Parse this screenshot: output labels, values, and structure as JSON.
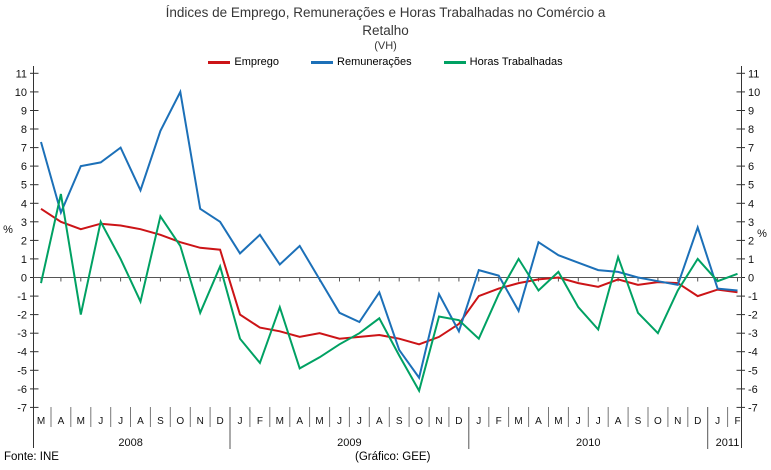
{
  "title": {
    "line1": "Índices de Emprego, Remunerações e Horas Trabalhadas no Comércio a",
    "line2": "Retalho",
    "subtitle": "(VH)"
  },
  "legend": [
    {
      "label": "Emprego",
      "color": "#cc1417"
    },
    {
      "label": "Remunerações",
      "color": "#1c70b8"
    },
    {
      "label": "Horas Trabalhadas",
      "color": "#00a163"
    }
  ],
  "footer": {
    "left": "Fonte: INE",
    "right": "(Gráfico: GEE)"
  },
  "chart_data": {
    "type": "line",
    "title": "Índices de Emprego, Remunerações e Horas Trabalhadas no Comércio a Retalho",
    "subtitle": "(VH)",
    "ylabel_left": "%",
    "ylabel_right": "%",
    "ylim": [
      -7,
      11
    ],
    "ytick_step": 1,
    "grid": false,
    "legend_position": "top",
    "months": [
      "M",
      "A",
      "M",
      "J",
      "J",
      "A",
      "S",
      "O",
      "N",
      "D",
      "J",
      "F",
      "M",
      "A",
      "M",
      "J",
      "J",
      "A",
      "S",
      "O",
      "N",
      "D",
      "J",
      "F",
      "M",
      "A",
      "M",
      "J",
      "J",
      "A",
      "S",
      "O",
      "N",
      "D",
      "J",
      "F"
    ],
    "years": [
      {
        "label": "2008",
        "count": 10
      },
      {
        "label": "2009",
        "count": 12
      },
      {
        "label": "2010",
        "count": 12
      },
      {
        "label": "2011",
        "count": 2
      }
    ],
    "series": [
      {
        "name": "Emprego",
        "color": "#cc1417",
        "values": [
          3.7,
          3.0,
          2.6,
          2.9,
          2.8,
          2.6,
          2.3,
          1.9,
          1.6,
          1.5,
          -2.0,
          -2.7,
          -2.9,
          -3.2,
          -3.0,
          -3.3,
          -3.2,
          -3.1,
          -3.3,
          -3.6,
          -3.2,
          -2.5,
          -1.0,
          -0.6,
          -0.3,
          -0.1,
          0.0,
          -0.3,
          -0.5,
          -0.1,
          -0.4,
          -0.25,
          -0.3,
          -1.0,
          -0.65,
          -0.8
        ]
      },
      {
        "name": "Remunerações",
        "color": "#1c70b8",
        "values": [
          7.3,
          3.5,
          6.0,
          6.2,
          7.0,
          4.7,
          7.9,
          10.0,
          3.7,
          3.0,
          1.3,
          2.3,
          0.7,
          1.7,
          -0.1,
          -1.9,
          -2.4,
          -0.8,
          -3.9,
          -5.4,
          -0.9,
          -2.9,
          0.4,
          0.1,
          -1.8,
          1.9,
          1.2,
          0.8,
          0.4,
          0.3,
          0.0,
          -0.2,
          -0.4,
          2.7,
          -0.6,
          -0.7
        ]
      },
      {
        "name": "Horas Trabalhadas",
        "color": "#00a163",
        "values": [
          -0.3,
          4.5,
          -2.0,
          3.0,
          1.0,
          -1.3,
          3.3,
          1.7,
          -1.9,
          0.6,
          -3.3,
          -4.6,
          -1.6,
          -4.9,
          -4.3,
          -3.6,
          -3.0,
          -2.2,
          -4.2,
          -6.1,
          -2.1,
          -2.3,
          -3.3,
          -0.9,
          1.0,
          -0.7,
          0.3,
          -1.6,
          -2.8,
          1.1,
          -1.9,
          -3.0,
          -0.7,
          1.0,
          -0.2,
          0.2
        ]
      }
    ]
  }
}
